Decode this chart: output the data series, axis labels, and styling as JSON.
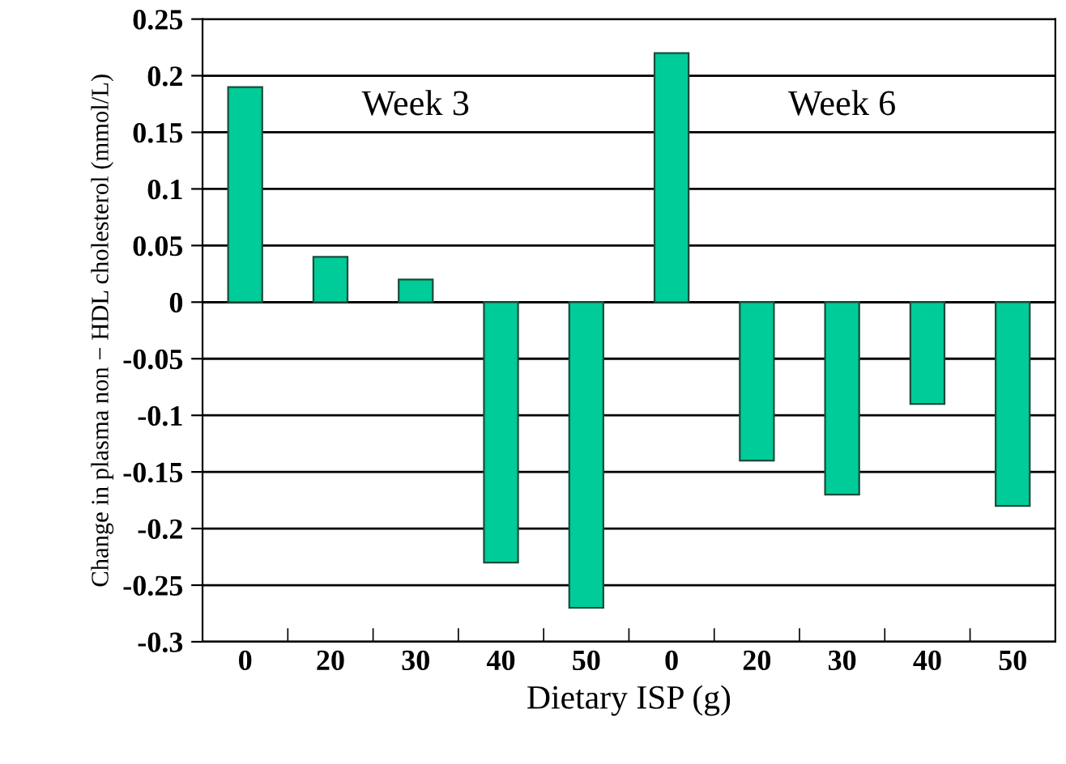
{
  "chart_data": {
    "type": "bar",
    "xlabel": "Dietary ISP (g)",
    "ylabel": "Change in plasma non − HDL cholesterol (mmol/L)",
    "categories": [
      "0",
      "20",
      "30",
      "40",
      "50",
      "0",
      "20",
      "30",
      "40",
      "50"
    ],
    "values": [
      0.19,
      0.04,
      0.02,
      -0.23,
      -0.27,
      0.22,
      -0.14,
      -0.17,
      -0.09,
      -0.18
    ],
    "color": "#00cc99",
    "ylim": [
      -0.3,
      0.25
    ],
    "yticks": [
      -0.3,
      -0.25,
      -0.2,
      -0.15,
      -0.1,
      -0.05,
      0,
      0.05,
      0.1,
      0.15,
      0.2,
      0.25
    ],
    "grid": "y",
    "legend": false,
    "annotations": [
      "Week 3",
      "Week 6"
    ]
  }
}
